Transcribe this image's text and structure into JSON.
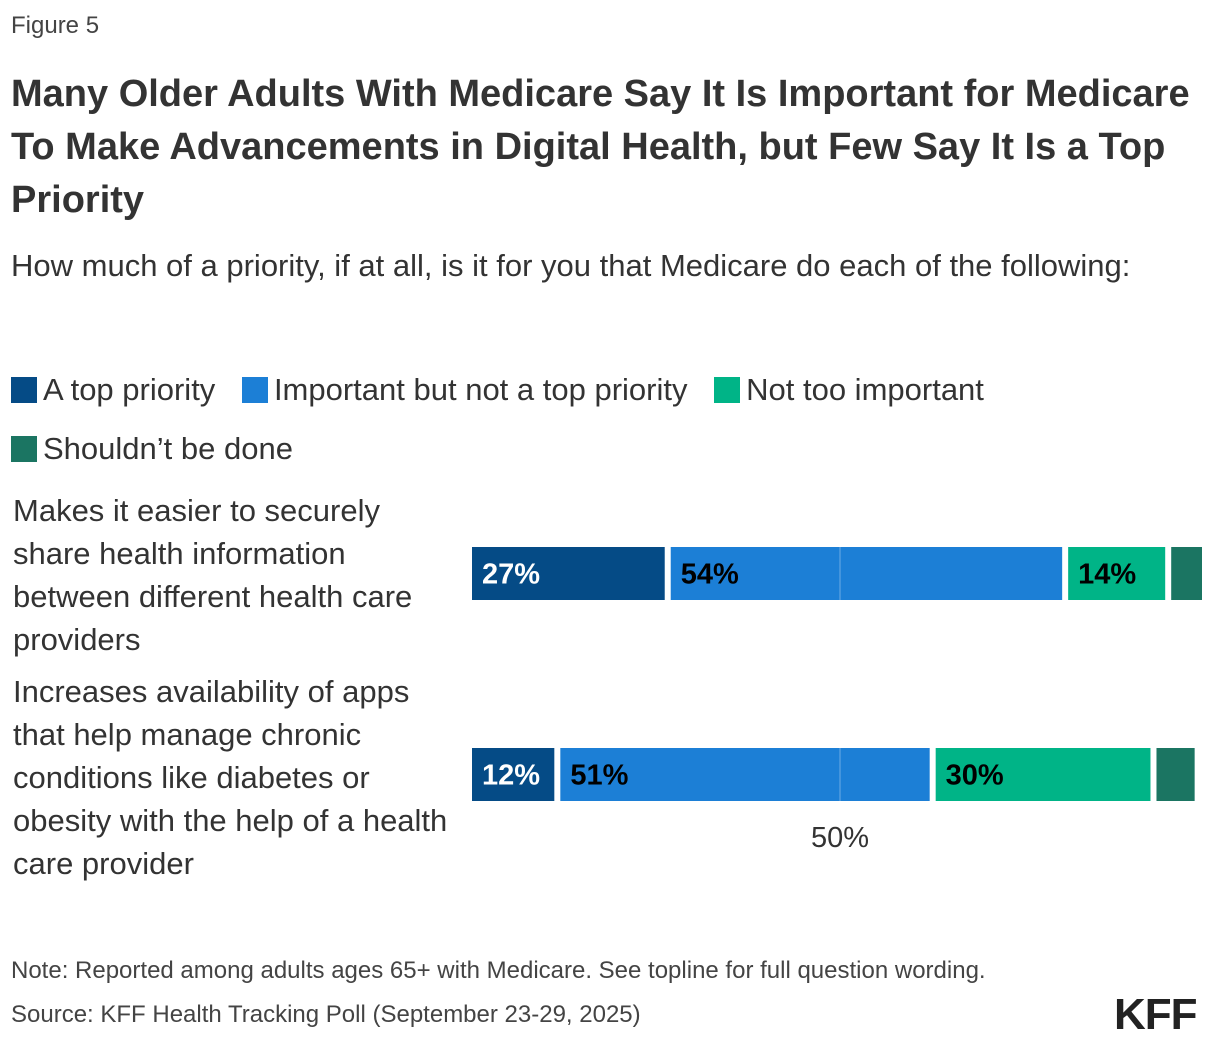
{
  "figure_label": "Figure 5",
  "title": "Many Older Adults With Medicare Say It Is Important for Medicare To Make Advancements in Digital Health, but Few Say It Is a Top Priority",
  "subtitle": "How much of a priority, if at all, is it for you that Medicare do each of the following:",
  "note": "Note: Reported among adults ages 65+ with Medicare. See topline for full question wording.",
  "source": "Source: KFF Health Tracking Poll (September 23-29, 2025)",
  "logo": "KFF",
  "chart_data": {
    "type": "bar",
    "orientation": "horizontal",
    "stacked": true,
    "legend_position": "top",
    "xlim": [
      0,
      100
    ],
    "x_tick_labels": [
      "50%"
    ],
    "categories": [
      "Makes it easier to securely share health information between different health care providers",
      "Increases availability of apps that help manage chronic conditions like diabetes or obesity with the help of a health care provider"
    ],
    "series": [
      {
        "name": "A top priority",
        "color": "#054b86",
        "label_color": "#ffffff",
        "values": [
          27,
          12
        ],
        "labels": [
          "27%",
          "12%"
        ]
      },
      {
        "name": "Important but not a top priority",
        "color": "#1c7fd6",
        "label_color": "#000000",
        "values": [
          54,
          51
        ],
        "labels": [
          "54%",
          "51%"
        ]
      },
      {
        "name": "Not too important",
        "color": "#00b487",
        "label_color": "#000000",
        "values": [
          14,
          30
        ],
        "labels": [
          "14%",
          "30%"
        ]
      },
      {
        "name": "Shouldn’t be done",
        "color": "#1b7562",
        "label_color": "#ffffff",
        "values": [
          5,
          6
        ],
        "labels": [
          "",
          ""
        ]
      }
    ]
  }
}
